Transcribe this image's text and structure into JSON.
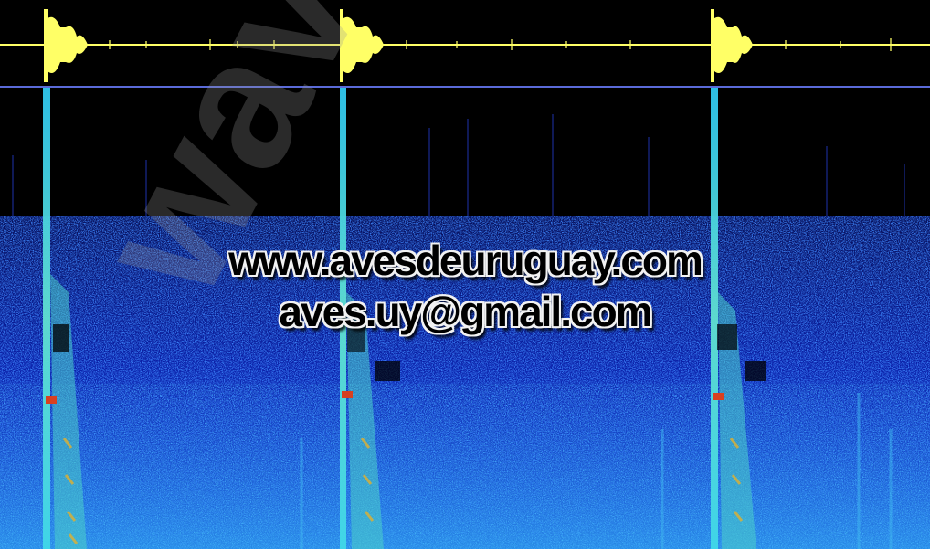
{
  "watermark": {
    "diagonal_text": "wave",
    "url": "www.avesdeuruguay.com",
    "email": "aves.uy@gmail.com"
  },
  "colors": {
    "background": "#000000",
    "waveform": "#ffff66",
    "baseline": "#5a6ad8",
    "noise_low": "#0a1a9a",
    "noise_high": "#2aa0ff",
    "call_core": "#d84020"
  }
}
